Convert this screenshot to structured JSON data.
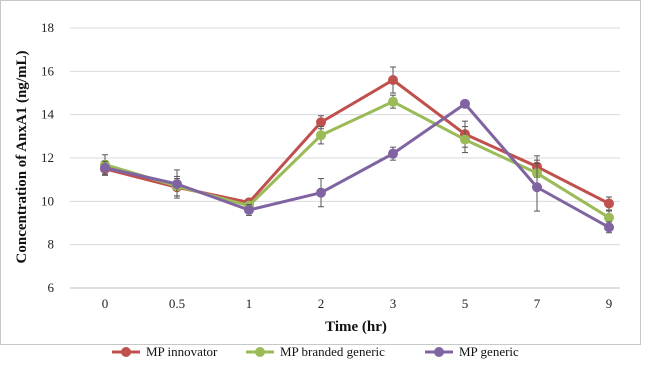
{
  "chart_data": {
    "type": "line",
    "title": "",
    "xlabel": "Time (hr)",
    "ylabel": "Concentration of AnxA1 (ng/mL)",
    "categories": [
      "0",
      "0.5",
      "1",
      "2",
      "3",
      "5",
      "7",
      "9"
    ],
    "ylim": [
      6,
      18
    ],
    "yticks": [
      "6",
      "8",
      "10",
      "12",
      "14",
      "16",
      "18"
    ],
    "grid": true,
    "legend_position": "bottom",
    "series": [
      {
        "name": "MP innovator",
        "color": "#c0504d",
        "values": [
          11.5,
          10.65,
          9.95,
          13.65,
          15.6,
          13.1,
          11.6,
          9.9
        ],
        "errors": [
          0.3,
          0.4,
          0.15,
          0.3,
          0.6,
          0.6,
          0.5,
          0.3
        ]
      },
      {
        "name": "MP branded generic",
        "color": "#9bbb59",
        "values": [
          11.7,
          10.7,
          9.8,
          13.05,
          14.6,
          12.85,
          11.3,
          9.25
        ],
        "errors": [
          0.45,
          0.45,
          0.2,
          0.4,
          0.3,
          0.6,
          0.6,
          0.3
        ]
      },
      {
        "name": "MP generic",
        "color": "#8064a2",
        "values": [
          11.55,
          10.8,
          9.6,
          10.4,
          12.2,
          14.5,
          10.65,
          8.8
        ],
        "errors": [
          0.3,
          0.65,
          0.25,
          0.65,
          0.3,
          0.15,
          1.1,
          0.25
        ]
      }
    ]
  }
}
